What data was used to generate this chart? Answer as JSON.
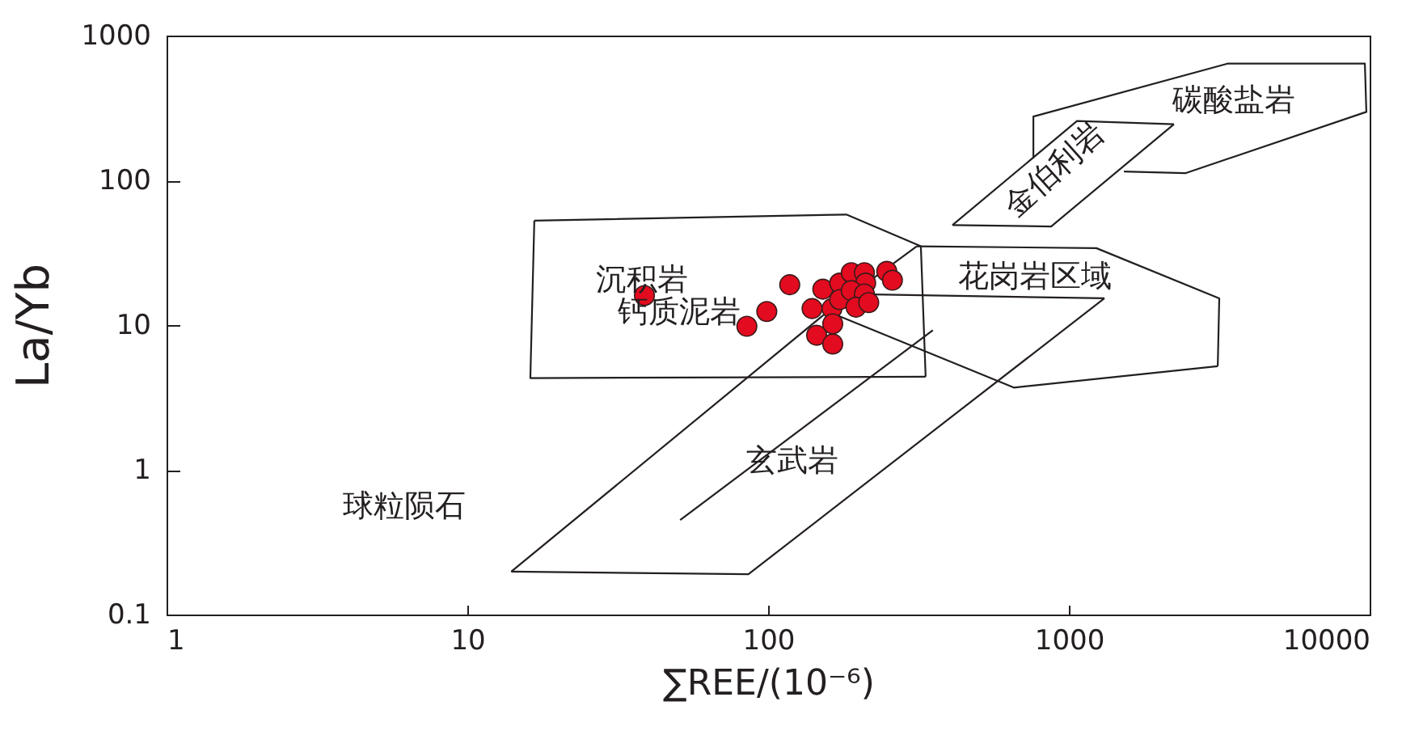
{
  "chart_data": {
    "type": "scatter",
    "xlabel": "∑REE/(10⁻⁶)",
    "ylabel": "La/Yb",
    "log": "xy",
    "xlim": [
      1,
      10000
    ],
    "xticks": [
      1,
      10,
      100,
      1000,
      10000
    ],
    "ylim": [
      0.1,
      1000
    ],
    "yticks": [
      0.1,
      1,
      10,
      100,
      1000
    ],
    "grid": false,
    "series": [
      {
        "color": "#e30b1f",
        "marker": "circle",
        "x": [
          38.8,
          118,
          99,
          85,
          152,
          140,
          163,
          173,
          173,
          189,
          209,
          211,
          189,
          209,
          196,
          216,
          248,
          259,
          164,
          145,
          164
        ],
        "values": [
          16,
          19,
          12.4,
          9.8,
          17.7,
          13,
          13,
          19.5,
          15,
          23,
          23,
          19.5,
          17.3,
          16.4,
          13.3,
          14.3,
          23.5,
          20.4,
          10.2,
          8.5,
          7.4
        ]
      },
      {
        "type": "line",
        "color": "#231f20",
        "line_style": "solid",
        "x": [
          16.7,
          182,
          322,
          334
        ],
        "values": [
          52.7,
          58,
          35,
          4.4
        ]
      },
      {
        "type": "line",
        "color": "#231f20",
        "line_style": "solid",
        "x": [
          334,
          16.2,
          16.7
        ],
        "values": [
          4.4,
          4.3,
          52.7
        ]
      },
      {
        "type": "line",
        "color": "#241f20",
        "line_style": "solid",
        "x": [
          14,
          86,
          1313
        ],
        "values": [
          0.198,
          0.19,
          15.3
        ]
      },
      {
        "type": "line",
        "color": "#241f20",
        "line_style": "solid",
        "x": [
          1313,
          186,
          14
        ],
        "values": [
          15.3,
          16.4,
          0.198
        ]
      },
      {
        "type": "line",
        "color": "#221f20",
        "line_style": "solid",
        "x": [
          312,
          1234,
          3162,
          3126
        ],
        "values": [
          35,
          34,
          15.3,
          5.2
        ]
      },
      {
        "type": "line",
        "color": "#221f20",
        "line_style": "solid",
        "x": [
          3126,
          656,
          158,
          312
        ],
        "values": [
          5.2,
          3.7,
          12.4,
          35
        ]
      },
      {
        "type": "line",
        "color": "#231e20",
        "line_style": "solid",
        "x": [
          51,
          353
        ],
        "values": [
          0.45,
          9.2
        ]
      },
      {
        "type": "line",
        "color": "#232020",
        "line_style": "solid",
        "x": [
          410,
          873,
          2235
        ],
        "values": [
          49,
          48,
          244
        ]
      },
      {
        "type": "line",
        "color": "#232020",
        "line_style": "solid",
        "x": [
          2235,
          1064,
          410
        ],
        "values": [
          244,
          257,
          49
        ]
      },
      {
        "type": "line",
        "color": "#231f21",
        "line_style": "solid",
        "x": [
          762,
          762,
          3365,
          9640,
          9750,
          2438,
          1524
        ],
        "values": [
          143,
          276,
          640,
          640,
          297,
          112,
          115
        ]
      }
    ],
    "annotations": [
      "沉积岩",
      "钙质泥岩",
      "花岗岩区域",
      "玄武岩",
      "球粒陨石",
      "金伯利岩",
      "碳酸盐岩"
    ]
  }
}
